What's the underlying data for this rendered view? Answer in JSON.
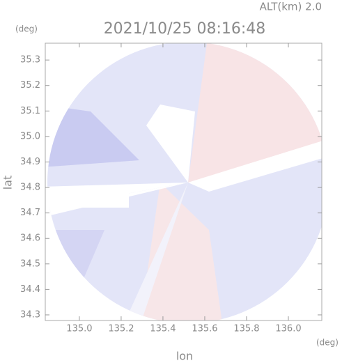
{
  "chart_data": {
    "type": "radar-map",
    "altitude_label": "ALT(km) 2.0",
    "title": "2021/10/25 08:16:48",
    "y_unit": "(deg)",
    "x_unit": "(deg)",
    "ylabel": "lat",
    "xlabel": "lon",
    "xlim": [
      134.837,
      136.16
    ],
    "ylim": [
      34.278,
      35.366
    ],
    "xticks": [
      {
        "value": 135,
        "label": "135.0"
      },
      135.2,
      135.4,
      135.6,
      135.8,
      {
        "value": 136,
        "label": "136.0"
      }
    ],
    "yticks": [
      34.3,
      34.4,
      34.5,
      34.6,
      34.7,
      34.8,
      34.9,
      {
        "value": 35,
        "label": "35.0"
      },
      35.1,
      35.2,
      35.3
    ]
  }
}
